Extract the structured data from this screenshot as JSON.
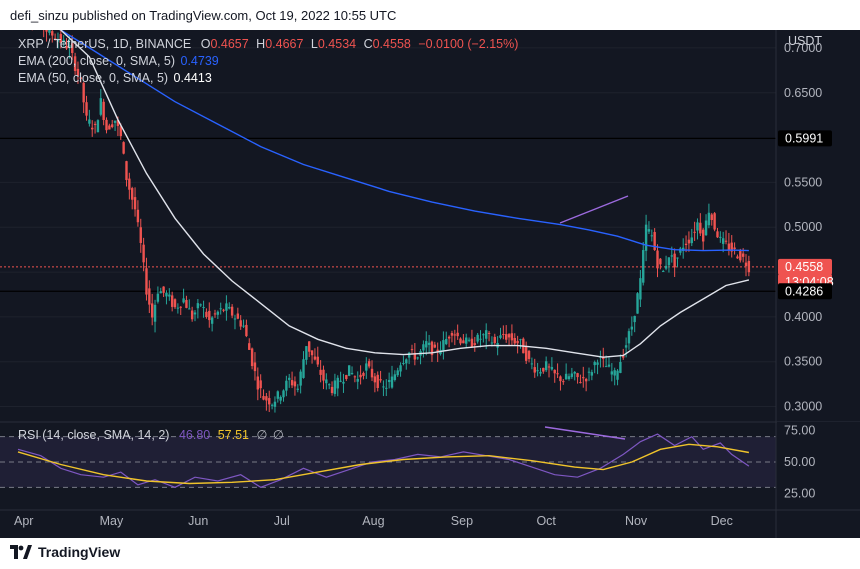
{
  "header": {
    "publisher": "defi_sinzu published on TradingView.com, Oct 19, 2022 10:55 UTC"
  },
  "legend": {
    "symbol": "XRP / TetherUS, 1D, BINANCE",
    "o_label": "O",
    "o": "0.4657",
    "h_label": "H",
    "h": "0.4667",
    "l_label": "L",
    "l": "0.4534",
    "c_label": "C",
    "c": "0.4558",
    "change": "−0.0100 (−2.15%)",
    "ema200_label": "EMA (200, close, 0, SMA, 5)",
    "ema200_value": "0.4739",
    "ema50_label": "EMA (50, close, 0, SMA, 5)",
    "ema50_value": "0.4413"
  },
  "rsi_legend": {
    "label": "RSI (14, close, SMA, 14, 2)",
    "rsi": "46.80",
    "ma": "57.51",
    "extra1": "∅",
    "extra2": "∅"
  },
  "footer": {
    "brand": "TradingView"
  },
  "colors": {
    "up": "#26a69a",
    "down": "#ef5350",
    "ema200": "#2962ff",
    "ema50": "#e0e3eb",
    "rsi": "#7e57c2",
    "rsi_ma": "#f0c42b",
    "bg": "#131722"
  },
  "chart_data": {
    "type": "candlestick",
    "title": "XRP / TetherUS, 1D, BINANCE",
    "ylabel": "USDT",
    "ylim": [
      0.285,
      0.72
    ],
    "y_ticks": [
      "0.7000",
      "0.6500",
      "0.5500",
      "0.5000",
      "0.4500",
      "0.4000",
      "0.3500",
      "0.3000"
    ],
    "x_ticks": [
      "Apr",
      "May",
      "Jun",
      "Jul",
      "Aug",
      "Sep",
      "Oct",
      "Nov",
      "Dec"
    ],
    "price_labels": [
      {
        "value": "0.5991",
        "kind": "level"
      },
      {
        "value": "0.4558",
        "kind": "last"
      },
      {
        "value": "13:04:08",
        "kind": "countdown"
      },
      {
        "value": "0.4286",
        "kind": "level"
      }
    ],
    "horizontal_levels": [
      0.5991,
      0.4286
    ],
    "last_price": 0.4558,
    "x_range_days": [
      0,
      262
    ],
    "price_path": [
      [
        0,
        0.735
      ],
      [
        4,
        0.74
      ],
      [
        7,
        0.73
      ],
      [
        10,
        0.72
      ],
      [
        14,
        0.71
      ],
      [
        18,
        0.7
      ],
      [
        22,
        0.66
      ],
      [
        24,
        0.62
      ],
      [
        27,
        0.61
      ],
      [
        29,
        0.64
      ],
      [
        31,
        0.61
      ],
      [
        34,
        0.62
      ],
      [
        36,
        0.6
      ],
      [
        38,
        0.555
      ],
      [
        41,
        0.52
      ],
      [
        43,
        0.48
      ],
      [
        45,
        0.43
      ],
      [
        47,
        0.4
      ],
      [
        49,
        0.43
      ],
      [
        52,
        0.425
      ],
      [
        55,
        0.41
      ],
      [
        58,
        0.42
      ],
      [
        61,
        0.4
      ],
      [
        64,
        0.415
      ],
      [
        67,
        0.395
      ],
      [
        70,
        0.405
      ],
      [
        73,
        0.41
      ],
      [
        76,
        0.4
      ],
      [
        79,
        0.39
      ],
      [
        82,
        0.35
      ],
      [
        84,
        0.325
      ],
      [
        86,
        0.31
      ],
      [
        89,
        0.305
      ],
      [
        92,
        0.315
      ],
      [
        95,
        0.33
      ],
      [
        98,
        0.32
      ],
      [
        101,
        0.37
      ],
      [
        104,
        0.35
      ],
      [
        107,
        0.33
      ],
      [
        110,
        0.32
      ],
      [
        113,
        0.33
      ],
      [
        116,
        0.34
      ],
      [
        119,
        0.33
      ],
      [
        122,
        0.345
      ],
      [
        125,
        0.33
      ],
      [
        128,
        0.32
      ],
      [
        131,
        0.33
      ],
      [
        134,
        0.35
      ],
      [
        137,
        0.36
      ],
      [
        140,
        0.355
      ],
      [
        143,
        0.37
      ],
      [
        146,
        0.36
      ],
      [
        149,
        0.37
      ],
      [
        152,
        0.385
      ],
      [
        155,
        0.375
      ],
      [
        158,
        0.37
      ],
      [
        161,
        0.375
      ],
      [
        164,
        0.38
      ],
      [
        167,
        0.37
      ],
      [
        170,
        0.38
      ],
      [
        173,
        0.375
      ],
      [
        176,
        0.37
      ],
      [
        179,
        0.35
      ],
      [
        182,
        0.34
      ],
      [
        185,
        0.345
      ],
      [
        188,
        0.335
      ],
      [
        191,
        0.33
      ],
      [
        194,
        0.335
      ],
      [
        197,
        0.33
      ],
      [
        200,
        0.335
      ],
      [
        203,
        0.355
      ],
      [
        206,
        0.345
      ],
      [
        209,
        0.335
      ],
      [
        212,
        0.36
      ],
      [
        215,
        0.39
      ],
      [
        218,
        0.44
      ],
      [
        220,
        0.5
      ],
      [
        222,
        0.49
      ],
      [
        224,
        0.46
      ],
      [
        226,
        0.45
      ],
      [
        228,
        0.47
      ],
      [
        230,
        0.46
      ],
      [
        233,
        0.48
      ],
      [
        236,
        0.49
      ],
      [
        238,
        0.505
      ],
      [
        240,
        0.49
      ],
      [
        242,
        0.52
      ],
      [
        244,
        0.5
      ],
      [
        246,
        0.485
      ],
      [
        248,
        0.48
      ],
      [
        250,
        0.475
      ],
      [
        252,
        0.47
      ],
      [
        254,
        0.465
      ],
      [
        256,
        0.4558
      ]
    ],
    "ema200_path": [
      [
        0,
        0.745
      ],
      [
        15,
        0.72
      ],
      [
        25,
        0.7
      ],
      [
        40,
        0.67
      ],
      [
        55,
        0.64
      ],
      [
        70,
        0.615
      ],
      [
        85,
        0.59
      ],
      [
        100,
        0.57
      ],
      [
        115,
        0.555
      ],
      [
        130,
        0.54
      ],
      [
        145,
        0.528
      ],
      [
        160,
        0.518
      ],
      [
        175,
        0.51
      ],
      [
        190,
        0.503
      ],
      [
        200,
        0.497
      ],
      [
        210,
        0.49
      ],
      [
        220,
        0.48
      ],
      [
        230,
        0.475
      ],
      [
        240,
        0.474
      ],
      [
        250,
        0.4745
      ],
      [
        256,
        0.4739
      ]
    ],
    "ema50_path": [
      [
        0,
        0.745
      ],
      [
        15,
        0.72
      ],
      [
        25,
        0.69
      ],
      [
        35,
        0.62
      ],
      [
        45,
        0.56
      ],
      [
        55,
        0.51
      ],
      [
        65,
        0.47
      ],
      [
        75,
        0.44
      ],
      [
        85,
        0.415
      ],
      [
        95,
        0.39
      ],
      [
        105,
        0.375
      ],
      [
        115,
        0.365
      ],
      [
        125,
        0.36
      ],
      [
        135,
        0.358
      ],
      [
        145,
        0.36
      ],
      [
        155,
        0.365
      ],
      [
        165,
        0.368
      ],
      [
        175,
        0.368
      ],
      [
        185,
        0.365
      ],
      [
        195,
        0.36
      ],
      [
        205,
        0.355
      ],
      [
        212,
        0.357
      ],
      [
        218,
        0.37
      ],
      [
        225,
        0.39
      ],
      [
        232,
        0.405
      ],
      [
        240,
        0.42
      ],
      [
        248,
        0.435
      ],
      [
        256,
        0.4413
      ]
    ],
    "rsi": {
      "label": "RSI (14, close, SMA, 14, 2)",
      "ylim": [
        20,
        80
      ],
      "y_ticks": [
        "75.00",
        "50.00",
        "25.00"
      ],
      "band": [
        30,
        70
      ],
      "mid": 50,
      "rsi_path": [
        [
          0,
          60
        ],
        [
          8,
          55
        ],
        [
          15,
          45
        ],
        [
          22,
          40
        ],
        [
          30,
          38
        ],
        [
          36,
          42
        ],
        [
          42,
          32
        ],
        [
          48,
          36
        ],
        [
          55,
          30
        ],
        [
          62,
          38
        ],
        [
          70,
          35
        ],
        [
          78,
          40
        ],
        [
          85,
          30
        ],
        [
          92,
          36
        ],
        [
          100,
          45
        ],
        [
          108,
          38
        ],
        [
          116,
          44
        ],
        [
          124,
          50
        ],
        [
          132,
          52
        ],
        [
          140,
          56
        ],
        [
          148,
          54
        ],
        [
          156,
          58
        ],
        [
          164,
          55
        ],
        [
          172,
          52
        ],
        [
          180,
          46
        ],
        [
          188,
          40
        ],
        [
          196,
          38
        ],
        [
          204,
          45
        ],
        [
          212,
          56
        ],
        [
          218,
          66
        ],
        [
          224,
          72
        ],
        [
          230,
          63
        ],
        [
          236,
          70
        ],
        [
          240,
          60
        ],
        [
          246,
          65
        ],
        [
          250,
          56
        ],
        [
          256,
          46.8
        ]
      ],
      "ma_path": [
        [
          0,
          58
        ],
        [
          15,
          48
        ],
        [
          30,
          40
        ],
        [
          45,
          35
        ],
        [
          60,
          33
        ],
        [
          75,
          34
        ],
        [
          90,
          36
        ],
        [
          105,
          42
        ],
        [
          120,
          48
        ],
        [
          135,
          52
        ],
        [
          150,
          54
        ],
        [
          165,
          55
        ],
        [
          180,
          51
        ],
        [
          195,
          46
        ],
        [
          205,
          44
        ],
        [
          215,
          50
        ],
        [
          225,
          60
        ],
        [
          235,
          64
        ],
        [
          245,
          62
        ],
        [
          256,
          57.51
        ]
      ]
    }
  }
}
